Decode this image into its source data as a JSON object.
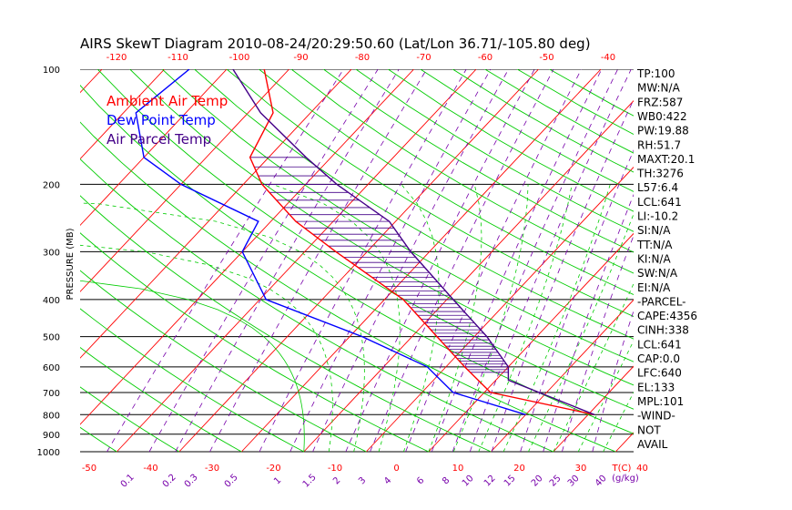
{
  "title": "AIRS SkewT Diagram 2010-08-24/20:29:50.60 (Lat/Lon 36.71/-105.80 deg)",
  "colors": {
    "ambient": "#ff0000",
    "dewpoint": "#0000ff",
    "parcel": "#440088",
    "hatch": "#440088",
    "isotherm": "#ff0000",
    "dry_adiabat": "#00cc00",
    "moist_adiabat": "#00cc00",
    "mixing_ratio": "#7700aa",
    "isobar": "#000000"
  },
  "legend": [
    {
      "label": "Ambient Air Temp",
      "color": "#ff0000"
    },
    {
      "label": "Dew Point Temp",
      "color": "#0000ff"
    },
    {
      "label": "Air Parcel Temp",
      "color": "#440088"
    }
  ],
  "indices": [
    "TP:100",
    "MW:N/A",
    "FRZ:587",
    "WB0:422",
    "PW:19.88",
    "RH:51.7",
    "MAXT:20.1",
    "TH:3276",
    "L57:6.4",
    "LCL:641",
    "LI:-10.2",
    "SI:N/A",
    "TT:N/A",
    "KI:N/A",
    "SW:N/A",
    "EI:N/A",
    "-PARCEL-",
    "CAPE:4356",
    "CINH:338",
    "LCL:641",
    "CAP:0.0",
    "LFC:640",
    "EL:133",
    "MPL:101",
    "-WIND-",
    "NOT",
    "AVAIL"
  ],
  "chart_data": {
    "type": "line",
    "title": "AIRS SkewT Diagram 2010-08-24/20:29:50.60 (Lat/Lon 36.71/-105.80 deg)",
    "ylabel": "PRESSURE (MB)",
    "xlabel": "T(C)",
    "y_scale": "log",
    "ylim": [
      1000,
      100
    ],
    "pressure_ticks": [
      100,
      200,
      300,
      400,
      500,
      600,
      700,
      800,
      900,
      1000
    ],
    "bottom_temp_ticks": [
      -50,
      -40,
      -30,
      -20,
      -10,
      0,
      10,
      20,
      30,
      40
    ],
    "top_temp_ticks": [
      -120,
      -110,
      -100,
      -90,
      -80,
      -70,
      -60,
      -50,
      -40
    ],
    "bottom_unit_label": "T(C)",
    "mixing_ratio_labels": [
      "0.1",
      "0.2",
      "0.3",
      "0.5",
      "1",
      "1.5",
      "2",
      "3",
      "4",
      "6",
      "8",
      "10",
      "12",
      "15",
      "20",
      "25",
      "30",
      "40"
    ],
    "mixing_ratio_unit": "(g/kg)",
    "series": [
      {
        "name": "Ambient Air Temp",
        "pressure": [
          100,
          130,
          170,
          200,
          250,
          300,
          400,
          500,
          600,
          700,
          800
        ],
        "temp": [
          -74,
          -66,
          -63,
          -57,
          -46,
          -35,
          -17,
          -6,
          3,
          11,
          31
        ]
      },
      {
        "name": "Dew Point Temp",
        "pressure": [
          100,
          130,
          170,
          200,
          250,
          300,
          400,
          500,
          600,
          700,
          800
        ],
        "temp": [
          -86,
          -88,
          -80,
          -70,
          -52,
          -50,
          -39,
          -18,
          -3,
          5,
          20
        ]
      },
      {
        "name": "Air Parcel Temp",
        "pressure": [
          100,
          130,
          170,
          200,
          250,
          300,
          400,
          500,
          600,
          650,
          800
        ],
        "temp": [
          -79,
          -68,
          -54,
          -45,
          -31,
          -23,
          -9,
          2,
          10,
          12,
          31
        ]
      }
    ]
  }
}
